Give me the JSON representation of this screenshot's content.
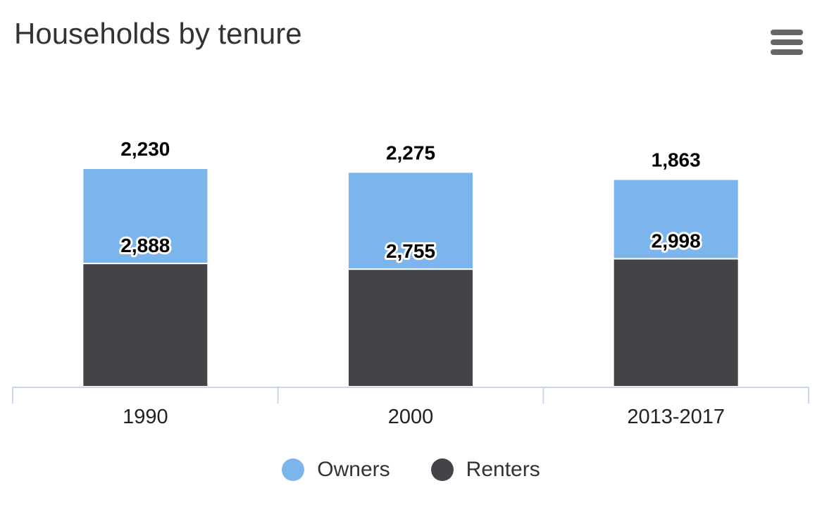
{
  "title": "Households by tenure",
  "menu": {
    "icon": "hamburger-menu-icon"
  },
  "chart_data": {
    "type": "bar",
    "stacked": true,
    "categories": [
      "1990",
      "2000",
      "2013-2017"
    ],
    "series": [
      {
        "name": "Owners",
        "color": "#7cb5ec",
        "values": [
          2230,
          2275,
          1863
        ]
      },
      {
        "name": "Renters",
        "color": "#434348",
        "values": [
          2888,
          2755,
          2998
        ]
      }
    ],
    "title": "Households by tenure",
    "xlabel": "",
    "ylabel": "",
    "ylim": [
      0,
      7000
    ],
    "grid": false,
    "legend": "bottom-center"
  }
}
